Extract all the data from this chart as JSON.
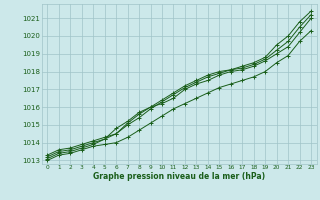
{
  "title": "Graphe pression niveau de la mer (hPa)",
  "bg_color": "#cce8ea",
  "grid_color": "#a0c4c8",
  "line_color": "#1a5e1a",
  "xlim": [
    -0.5,
    23.5
  ],
  "ylim": [
    1012.8,
    1021.8
  ],
  "yticks": [
    1013,
    1014,
    1015,
    1016,
    1017,
    1018,
    1019,
    1020,
    1021
  ],
  "xticks": [
    0,
    1,
    2,
    3,
    4,
    5,
    6,
    7,
    8,
    9,
    10,
    11,
    12,
    13,
    14,
    15,
    16,
    17,
    18,
    19,
    20,
    21,
    22,
    23
  ],
  "series": [
    [
      1013.3,
      1013.6,
      1013.7,
      1013.9,
      1014.1,
      1014.3,
      1014.5,
      1015.1,
      1015.6,
      1016.0,
      1016.4,
      1016.8,
      1017.2,
      1017.5,
      1017.8,
      1018.0,
      1018.1,
      1018.3,
      1018.5,
      1018.8,
      1019.5,
      1020.0,
      1020.8,
      1021.4
    ],
    [
      1013.2,
      1013.5,
      1013.6,
      1013.8,
      1014.0,
      1014.2,
      1014.5,
      1015.0,
      1015.4,
      1015.9,
      1016.3,
      1016.7,
      1017.1,
      1017.4,
      1017.7,
      1017.9,
      1018.1,
      1018.2,
      1018.4,
      1018.7,
      1019.2,
      1019.7,
      1020.5,
      1021.2
    ],
    [
      1013.1,
      1013.4,
      1013.5,
      1013.7,
      1013.9,
      1014.2,
      1014.8,
      1015.2,
      1015.7,
      1016.0,
      1016.2,
      1016.5,
      1017.0,
      1017.3,
      1017.5,
      1017.8,
      1018.0,
      1018.1,
      1018.3,
      1018.6,
      1019.0,
      1019.4,
      1020.2,
      1021.0
    ],
    [
      1013.0,
      1013.3,
      1013.4,
      1013.6,
      1013.8,
      1013.9,
      1014.0,
      1014.3,
      1014.7,
      1015.1,
      1015.5,
      1015.9,
      1016.2,
      1016.5,
      1016.8,
      1017.1,
      1017.3,
      1017.5,
      1017.7,
      1018.0,
      1018.5,
      1018.9,
      1019.7,
      1020.3
    ]
  ]
}
